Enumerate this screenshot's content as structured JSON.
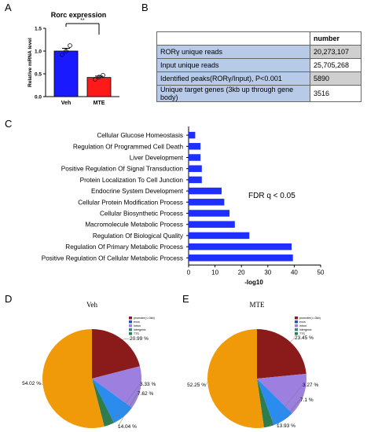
{
  "panel_labels": {
    "a": "A",
    "b": "B",
    "c": "C",
    "d": "D",
    "e": "E"
  },
  "colors": {
    "veh_bar": "#1a1aff",
    "mte_bar": "#ff1a1a",
    "bar_blue": "#1f2fff",
    "table_row_blue": "#b7cbe8",
    "table_cell_grey": "#cfcfcf"
  },
  "table": {
    "header_value": "number",
    "rows": [
      {
        "label": "RORγ unique reads",
        "value": "20,273,107"
      },
      {
        "label": "Input unique reads",
        "value": "25,705,268"
      },
      {
        "label": "Identified peaks(RORγ/Input), P<0.001",
        "value": "5890"
      },
      {
        "label": "Unique target genes (3kb up through gene body)",
        "value": "3516"
      }
    ]
  },
  "chart_data": [
    {
      "type": "bar",
      "title": "Rorc expression",
      "ylabel": "Relative mRNA level",
      "categories": [
        "Veh",
        "MTE"
      ],
      "values": [
        1.0,
        0.42
      ],
      "errors": [
        0.06,
        0.03
      ],
      "points": [
        [
          0.92,
          1.0,
          1.12
        ],
        [
          0.38,
          0.43,
          0.47
        ]
      ],
      "ylim": [
        0,
        1.5
      ],
      "yticks": [
        "0.0",
        "0.5",
        "1.0",
        "1.5"
      ],
      "significance": "**"
    },
    {
      "type": "bar",
      "orientation": "horizontal",
      "categories": [
        "Cellular Glucose Homeostasis",
        "Regulation Of Programmed Cell Death",
        "Liver Development",
        "Positive Regulation Of Signal Transduction",
        "Protein Localization To Cell Junction",
        "Endocrine System Development",
        "Cellular Protein Modification Process",
        "Cellular Biosynthetic Process",
        "Macromolecule Metabolic Process",
        "Regulation Of Biological Quality",
        "Regulation Of Primary Metabolic Process",
        "Positive Regulation Of Cellular Metabolic Process"
      ],
      "values": [
        2.5,
        4.5,
        4.5,
        5,
        5,
        12.5,
        13.5,
        15.5,
        17.5,
        23,
        39,
        39.5
      ],
      "xlabel": "-log10",
      "xlim": [
        0,
        50
      ],
      "xticks": [
        "0",
        "10",
        "20",
        "30",
        "40",
        "50"
      ],
      "annotation": "FDR q < 0.05"
    },
    {
      "type": "pie",
      "title": "Veh",
      "legend": [
        "promoter(<=3kb)",
        "exon",
        "intron",
        "intergenic",
        "TTS"
      ],
      "values": [
        20.99,
        0.0,
        14.04,
        7.62,
        3.33,
        54.02
      ],
      "slice_labels": [
        "20.99 %",
        "",
        "14.04 %",
        "7.62 %",
        "3.33 %",
        "54.02 %"
      ],
      "colors": [
        "#8b1a1a",
        "#8b1a1a",
        "#9d7fe0",
        "#2b8cf0",
        "#2e7d4f",
        "#f09a0a"
      ]
    },
    {
      "type": "pie",
      "title": "MTE",
      "legend": [
        "promoter(<=3kb)",
        "exon",
        "intron",
        "intergenic",
        "TTS"
      ],
      "values": [
        23.45,
        0.0,
        13.93,
        7.1,
        3.27,
        52.25
      ],
      "slice_labels": [
        "23.45 %",
        "",
        "13.93 %",
        "7.1 %",
        "3.27 %",
        "52.25 %"
      ],
      "colors": [
        "#8b1a1a",
        "#8b1a1a",
        "#9d7fe0",
        "#2b8cf0",
        "#2e7d4f",
        "#f09a0a"
      ]
    }
  ]
}
